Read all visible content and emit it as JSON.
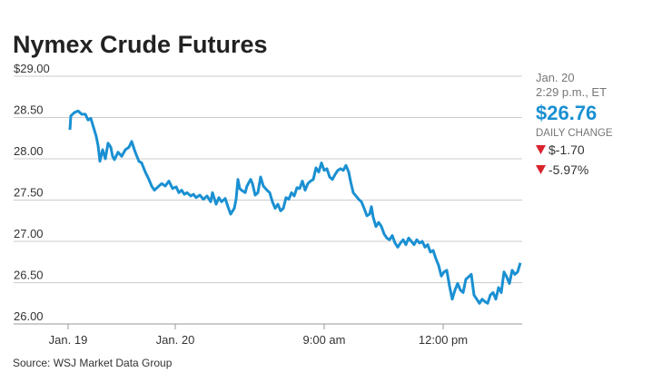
{
  "chart_data": {
    "type": "line",
    "title": "Nymex Crude Futures",
    "source": "Source: WSJ Market Data Group",
    "side_panel": {
      "date": "Jan. 20",
      "time": "2:29 p.m., ET",
      "price": "$26.76",
      "change_label": "DAILY CHANGE",
      "change": "$-1.70",
      "change_pct": "-5.97%"
    },
    "xlim": [
      -60,
      500
    ],
    "xticks": [
      {
        "value": 0,
        "label": "Jan. 19"
      },
      {
        "value": 118,
        "label": "Jan. 20"
      },
      {
        "value": 282,
        "label": "9:00 am"
      },
      {
        "value": 413,
        "label": "12:00 pm"
      }
    ],
    "ylim": [
      26,
      29
    ],
    "yticks": [
      {
        "value": 26,
        "label": "26.00"
      },
      {
        "value": 26.5,
        "label": "26.50"
      },
      {
        "value": 27,
        "label": "27.00"
      },
      {
        "value": 27.5,
        "label": "27.50"
      },
      {
        "value": 28,
        "label": "28.00"
      },
      {
        "value": 28.5,
        "label": "28.50"
      },
      {
        "value": 29,
        "label": "$29.00"
      }
    ],
    "grid": true,
    "series": [
      {
        "color": "#1a90d2",
        "x": [
          2,
          3,
          7,
          11,
          15,
          19,
          22,
          25,
          28,
          31,
          33,
          35,
          38,
          41,
          44,
          47,
          49,
          51,
          55,
          59,
          63,
          67,
          70,
          73,
          75,
          78,
          81,
          85,
          89,
          92,
          95,
          99,
          103,
          107,
          111,
          115,
          119,
          122,
          125,
          128,
          131,
          135,
          138,
          141,
          145,
          149,
          153,
          157,
          159,
          163,
          166,
          169,
          173,
          176,
          179,
          183,
          185,
          187,
          189,
          191,
          195,
          197,
          201,
          203,
          206,
          209,
          212,
          215,
          219,
          222,
          225,
          228,
          231,
          234,
          237,
          240,
          243,
          246,
          249,
          252,
          255,
          258,
          261,
          264,
          267,
          270,
          273,
          276,
          279,
          282,
          285,
          288,
          291,
          294,
          297,
          300,
          303,
          306,
          309,
          311,
          314,
          317,
          320,
          323,
          326,
          329,
          332,
          334,
          336,
          339,
          342,
          345,
          348,
          351,
          354,
          357,
          360,
          363,
          366,
          369,
          372,
          375,
          378,
          381,
          384,
          387,
          390,
          393,
          396,
          399,
          402,
          405,
          408,
          411,
          414,
          417,
          420,
          423,
          426,
          429,
          432,
          435,
          438,
          441,
          444,
          447,
          450,
          453,
          456,
          459,
          462,
          465,
          468,
          471,
          474,
          477,
          480,
          483,
          486,
          489,
          492,
          495,
          498
        ],
        "values": [
          28.35,
          28.52,
          28.56,
          28.58,
          28.54,
          28.54,
          28.47,
          28.49,
          28.38,
          28.27,
          28.16,
          27.97,
          28.11,
          28.0,
          28.19,
          28.14,
          28.03,
          27.99,
          28.08,
          28.03,
          28.11,
          28.14,
          28.21,
          28.11,
          28.05,
          27.97,
          27.95,
          27.84,
          27.75,
          27.67,
          27.62,
          27.66,
          27.7,
          27.67,
          27.73,
          27.64,
          27.66,
          27.59,
          27.62,
          27.57,
          27.59,
          27.55,
          27.57,
          27.53,
          27.56,
          27.51,
          27.55,
          27.48,
          27.59,
          27.45,
          27.53,
          27.48,
          27.52,
          27.42,
          27.33,
          27.4,
          27.51,
          27.75,
          27.64,
          27.62,
          27.59,
          27.67,
          27.75,
          27.7,
          27.56,
          27.59,
          27.78,
          27.67,
          27.62,
          27.59,
          27.48,
          27.4,
          27.45,
          27.37,
          27.4,
          27.53,
          27.51,
          27.59,
          27.55,
          27.65,
          27.64,
          27.73,
          27.62,
          27.7,
          27.73,
          27.75,
          27.89,
          27.84,
          27.95,
          27.86,
          27.88,
          27.78,
          27.75,
          27.81,
          27.86,
          27.88,
          27.86,
          27.92,
          27.84,
          27.73,
          27.59,
          27.55,
          27.51,
          27.48,
          27.4,
          27.31,
          27.33,
          27.42,
          27.29,
          27.18,
          27.23,
          27.18,
          27.09,
          27.04,
          27.02,
          27.07,
          26.98,
          26.93,
          26.98,
          27.02,
          26.96,
          27.04,
          27.0,
          26.96,
          27.02,
          26.98,
          27.0,
          26.93,
          26.96,
          26.87,
          26.89,
          26.79,
          26.71,
          26.58,
          26.63,
          26.65,
          26.46,
          26.3,
          26.41,
          26.49,
          26.41,
          26.38,
          26.54,
          26.57,
          26.6,
          26.35,
          26.3,
          26.25,
          26.3,
          26.27,
          26.25,
          26.35,
          26.38,
          26.3,
          26.44,
          26.38,
          26.63,
          26.57,
          26.49,
          26.65,
          26.6,
          26.63,
          26.74
        ]
      }
    ]
  }
}
